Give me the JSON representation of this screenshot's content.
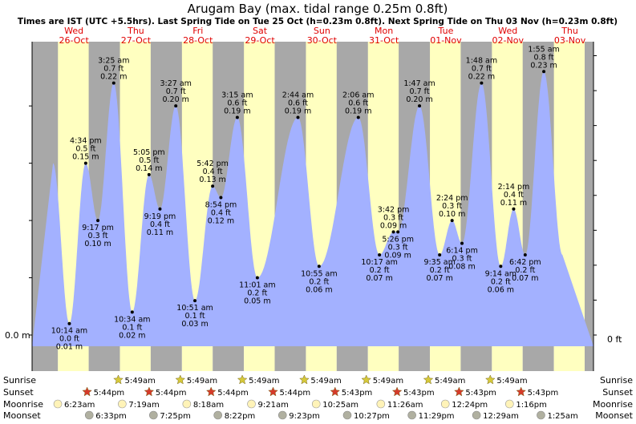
{
  "chart_data": {
    "type": "area",
    "title": "Arugam Bay (max. tidal range 0.25m 0.8ft)",
    "subtitle": "Times are IST (UTC +5.5hrs). Last Spring Tide on Tue 25 Oct (h=0.23m 0.8ft). Next Spring Tide on Thu 03 Nov (h=0.23m 0.8ft)",
    "y_unit_left": "m",
    "y_unit_right": "ft",
    "ylim": [
      0,
      0.24
    ],
    "y_label_left": "0.0 m",
    "y_label_right": "0 ft",
    "days": [
      {
        "dow": "Wed",
        "date": "26-Oct"
      },
      {
        "dow": "Thu",
        "date": "27-Oct"
      },
      {
        "dow": "Fri",
        "date": "28-Oct"
      },
      {
        "dow": "Sat",
        "date": "29-Oct"
      },
      {
        "dow": "Sun",
        "date": "30-Oct"
      },
      {
        "dow": "Mon",
        "date": "31-Oct"
      },
      {
        "dow": "Tue",
        "date": "01-Nov"
      },
      {
        "dow": "Wed",
        "date": "02-Nov"
      },
      {
        "dow": "Thu",
        "date": "03-Nov"
      }
    ],
    "tides": [
      {
        "day": 0,
        "time": "10:14 am",
        "h": 0.01,
        "ft": "0.0 ft",
        "m": "0.01 m",
        "label": "below"
      },
      {
        "day": 0,
        "time": "4:34 pm",
        "h": 0.15,
        "ft": "0.5 ft",
        "m": "0.15 m",
        "label": "above"
      },
      {
        "day": 0,
        "time": "9:17 pm",
        "h": 0.1,
        "ft": "0.3 ft",
        "m": "0.10 m",
        "label": "below"
      },
      {
        "day": 1,
        "time": "3:25 am",
        "h": 0.22,
        "ft": "0.7 ft",
        "m": "0.22 m",
        "label": "above"
      },
      {
        "day": 1,
        "time": "10:34 am",
        "h": 0.02,
        "ft": "0.1 ft",
        "m": "0.02 m",
        "label": "below"
      },
      {
        "day": 1,
        "time": "5:05 pm",
        "h": 0.14,
        "ft": "0.5 ft",
        "m": "0.14 m",
        "label": "above"
      },
      {
        "day": 1,
        "time": "9:19 pm",
        "h": 0.11,
        "ft": "0.4 ft",
        "m": "0.11 m",
        "label": "below"
      },
      {
        "day": 2,
        "time": "3:27 am",
        "h": 0.2,
        "ft": "0.7 ft",
        "m": "0.20 m",
        "label": "above"
      },
      {
        "day": 2,
        "time": "10:51 am",
        "h": 0.03,
        "ft": "0.1 ft",
        "m": "0.03 m",
        "label": "below"
      },
      {
        "day": 2,
        "time": "5:42 pm",
        "h": 0.13,
        "ft": "0.4 ft",
        "m": "0.13 m",
        "label": "above"
      },
      {
        "day": 2,
        "time": "8:54 pm",
        "h": 0.12,
        "ft": "0.4 ft",
        "m": "0.12 m",
        "label": "below"
      },
      {
        "day": 3,
        "time": "3:15 am",
        "h": 0.19,
        "ft": "0.6 ft",
        "m": "0.19 m",
        "label": "above"
      },
      {
        "day": 3,
        "time": "11:01 am",
        "h": 0.05,
        "ft": "0.2 ft",
        "m": "0.05 m",
        "label": "below"
      },
      {
        "day": 4,
        "time": "2:44 am",
        "h": 0.19,
        "ft": "0.6 ft",
        "m": "0.19 m",
        "label": "above"
      },
      {
        "day": 4,
        "time": "10:55 am",
        "h": 0.06,
        "ft": "0.2 ft",
        "m": "0.06 m",
        "label": "below"
      },
      {
        "day": 5,
        "time": "2:06 am",
        "h": 0.19,
        "ft": "0.6 ft",
        "m": "0.19 m",
        "label": "above"
      },
      {
        "day": 5,
        "time": "10:17 am",
        "h": 0.07,
        "ft": "0.2 ft",
        "m": "0.07 m",
        "label": "below"
      },
      {
        "day": 5,
        "time": "3:42 pm",
        "h": 0.09,
        "ft": "0.3 ft",
        "m": "0.09 m",
        "label": "above"
      },
      {
        "day": 5,
        "time": "5:26 pm",
        "h": 0.09,
        "ft": "0.3 ft",
        "m": "0.09 m",
        "label": "below"
      },
      {
        "day": 6,
        "time": "1:47 am",
        "h": 0.2,
        "ft": "0.7 ft",
        "m": "0.20 m",
        "label": "above"
      },
      {
        "day": 6,
        "time": "9:35 am",
        "h": 0.07,
        "ft": "0.2 ft",
        "m": "0.07 m",
        "label": "below"
      },
      {
        "day": 6,
        "time": "2:24 pm",
        "h": 0.1,
        "ft": "0.3 ft",
        "m": "0.10 m",
        "label": "above"
      },
      {
        "day": 6,
        "time": "6:14 pm",
        "h": 0.08,
        "ft": "0.3 ft",
        "m": "0.08 m",
        "label": "below"
      },
      {
        "day": 7,
        "time": "1:48 am",
        "h": 0.22,
        "ft": "0.7 ft",
        "m": "0.22 m",
        "label": "above"
      },
      {
        "day": 7,
        "time": "9:14 am",
        "h": 0.06,
        "ft": "0.2 ft",
        "m": "0.06 m",
        "label": "below"
      },
      {
        "day": 7,
        "time": "2:14 pm",
        "h": 0.11,
        "ft": "0.4 ft",
        "m": "0.11 m",
        "label": "above"
      },
      {
        "day": 7,
        "time": "6:42 pm",
        "h": 0.07,
        "ft": "0.2 ft",
        "m": "0.07 m",
        "label": "below"
      },
      {
        "day": 8,
        "time": "1:55 am",
        "h": 0.23,
        "ft": "0.8 ft",
        "m": "0.23 m",
        "label": "above"
      }
    ],
    "daylight": {
      "sunrise_hour": 5.82,
      "sunset_hour": 17.73
    },
    "astro": {
      "labels": [
        "Sunrise",
        "Sunset",
        "Moonrise",
        "Moonset"
      ],
      "sunrise": [
        {
          "day": 1,
          "time": "5:49am"
        },
        {
          "day": 2,
          "time": "5:49am"
        },
        {
          "day": 3,
          "time": "5:49am"
        },
        {
          "day": 4,
          "time": "5:49am"
        },
        {
          "day": 5,
          "time": "5:49am"
        },
        {
          "day": 6,
          "time": "5:49am"
        },
        {
          "day": 7,
          "time": "5:49am"
        }
      ],
      "sunset": [
        {
          "day": 0,
          "time": "5:44pm"
        },
        {
          "day": 1,
          "time": "5:44pm"
        },
        {
          "day": 2,
          "time": "5:44pm"
        },
        {
          "day": 3,
          "time": "5:44pm"
        },
        {
          "day": 4,
          "time": "5:43pm"
        },
        {
          "day": 5,
          "time": "5:43pm"
        },
        {
          "day": 6,
          "time": "5:43pm"
        },
        {
          "day": 7,
          "time": "5:43pm"
        }
      ],
      "moonrise": [
        {
          "day": 0,
          "time": "6:23am"
        },
        {
          "day": 1,
          "time": "7:19am"
        },
        {
          "day": 2,
          "time": "8:18am"
        },
        {
          "day": 3,
          "time": "9:21am"
        },
        {
          "day": 4,
          "time": "10:25am"
        },
        {
          "day": 5,
          "time": "11:26am"
        },
        {
          "day": 6,
          "time": "12:24pm"
        },
        {
          "day": 7,
          "time": "1:16pm"
        }
      ],
      "moonset": [
        {
          "day": 0,
          "time": "6:33pm"
        },
        {
          "day": 1,
          "time": "7:25pm"
        },
        {
          "day": 2,
          "time": "8:22pm"
        },
        {
          "day": 3,
          "time": "9:23pm"
        },
        {
          "day": 4,
          "time": "10:27pm"
        },
        {
          "day": 5,
          "time": "11:29pm"
        },
        {
          "day": 7,
          "time": "12:29am"
        },
        {
          "day": 8,
          "time": "1:25am"
        }
      ]
    },
    "colors": {
      "day": "#ffffc0",
      "night": "#a8a8a8",
      "tide_fill": "#a3b1ff",
      "day_label": "#e00000",
      "sun": "#d6c93a",
      "sunset": "#d53a2a",
      "moonrise": "#fff3b8",
      "moonset": "#b0b0a0"
    }
  }
}
